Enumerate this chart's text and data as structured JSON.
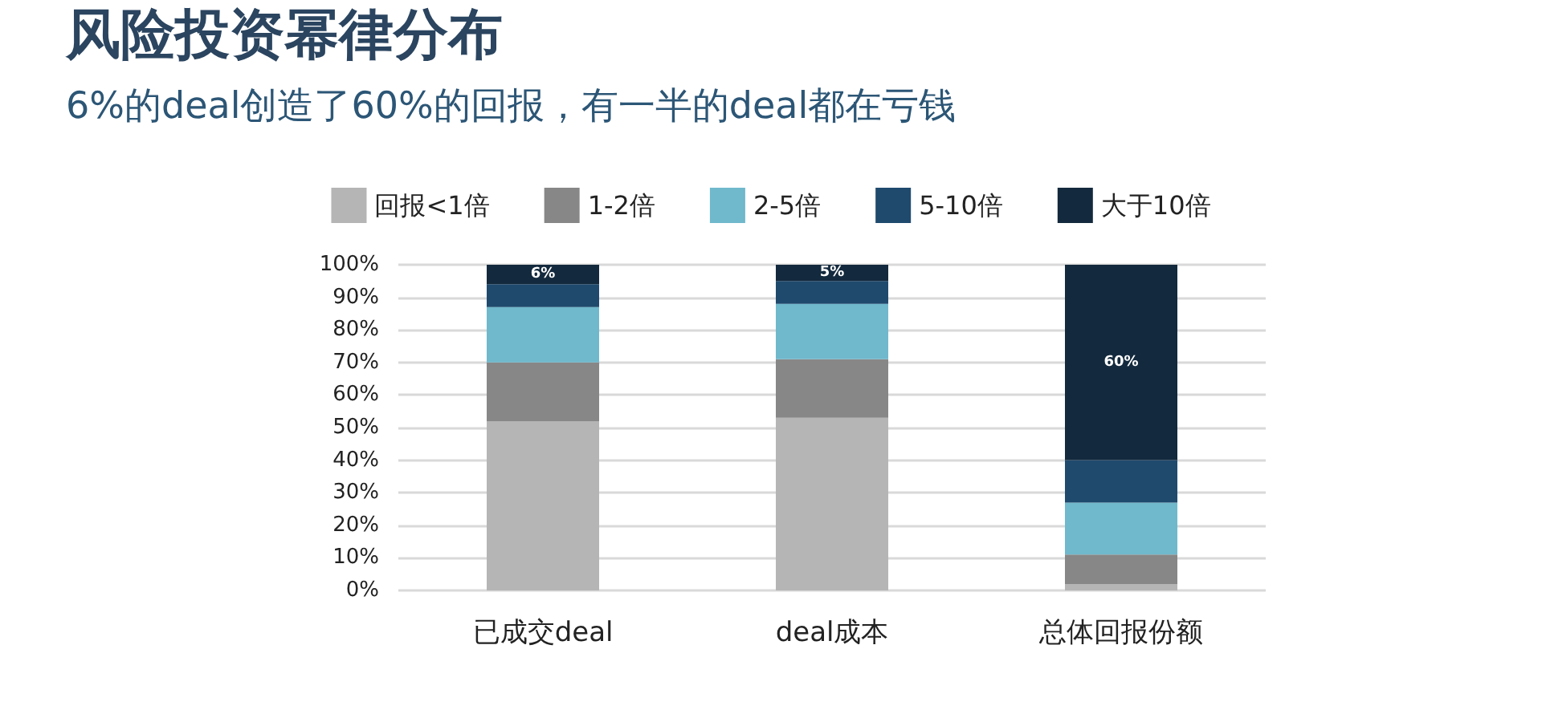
{
  "chart_data": {
    "type": "bar",
    "title": "风险投资幂律分布",
    "subtitle": "6%的deal创造了60%的回报，有一半的deal都在亏钱",
    "categories": [
      "已成交deal",
      "deal成本",
      "总体回报份额"
    ],
    "stacked": true,
    "series": [
      {
        "name": "回报<1倍",
        "color": "#b5b5b5",
        "values": [
          52,
          53,
          2
        ]
      },
      {
        "name": "1-2倍",
        "color": "#878787",
        "values": [
          18,
          18,
          9
        ]
      },
      {
        "name": "2-5倍",
        "color": "#70b8cc",
        "values": [
          17,
          17,
          16
        ]
      },
      {
        "name": "5-10倍",
        "color": "#1f4a6e",
        "values": [
          7,
          7,
          13
        ]
      },
      {
        "name": "大于10倍",
        "color": "#13293d",
        "values": [
          6,
          5,
          60
        ],
        "value_labels": [
          "6%",
          "5%",
          "60%"
        ]
      }
    ],
    "ylim": [
      0,
      100
    ],
    "yticks": [
      {
        "value": 0,
        "label": "0%"
      },
      {
        "value": 10,
        "label": "10%"
      },
      {
        "value": 20,
        "label": "20%"
      },
      {
        "value": 30,
        "label": "30%"
      },
      {
        "value": 40,
        "label": "40%"
      },
      {
        "value": 50,
        "label": "50%"
      },
      {
        "value": 60,
        "label": "60%"
      },
      {
        "value": 70,
        "label": "70%"
      },
      {
        "value": 80,
        "label": "80%"
      },
      {
        "value": 90,
        "label": "90%"
      },
      {
        "value": 100,
        "label": "100%"
      }
    ],
    "grid": "y",
    "legend": "top"
  }
}
